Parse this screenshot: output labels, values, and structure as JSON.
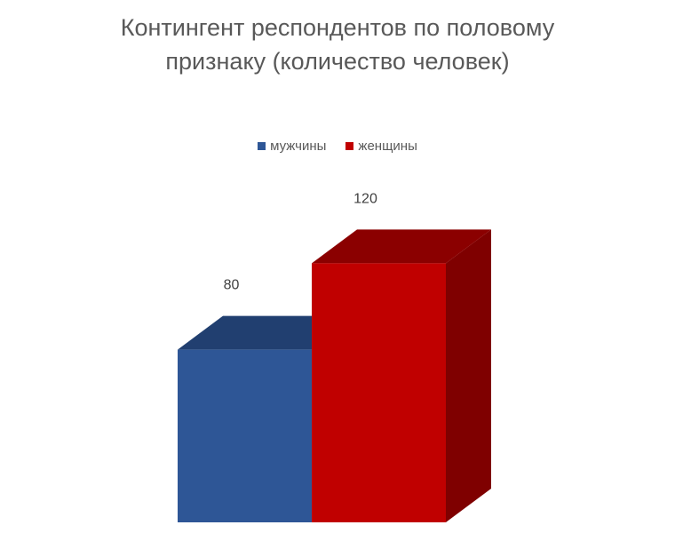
{
  "chart_data": {
    "type": "bar",
    "title_lines": [
      "Контингент респондентов по половому",
      "признаку (количество человек)"
    ],
    "categories": [
      ""
    ],
    "series": [
      {
        "name": "мужчины",
        "values": [
          80
        ],
        "color": "#2E5696",
        "top_color": "#213F70"
      },
      {
        "name": "женщины",
        "values": [
          120
        ],
        "color": "#C00000",
        "top_color": "#8B0000",
        "side_color": "#7F0000"
      }
    ],
    "data_labels": [
      "80",
      "120"
    ],
    "ylim": [
      0,
      200
    ],
    "style": "3d-clustered-column",
    "legend_position": "top",
    "grid": false
  }
}
